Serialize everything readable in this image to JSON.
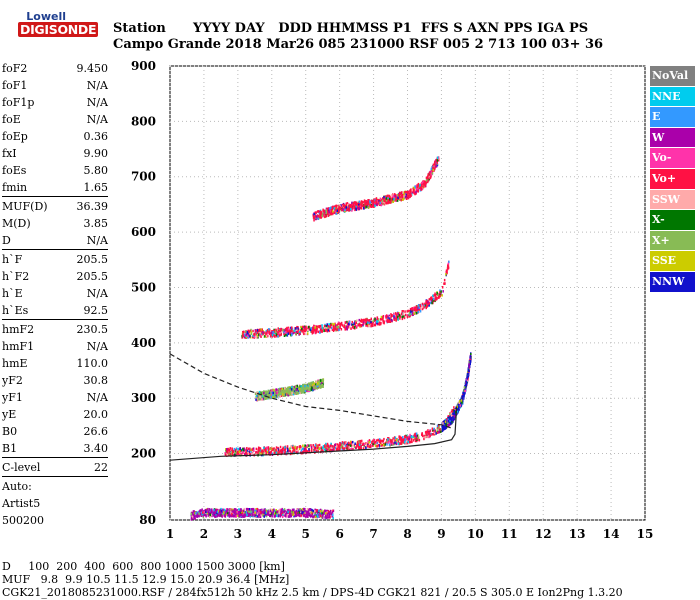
{
  "logo": {
    "line1": "Lowell",
    "line2": "DIGISONDE"
  },
  "header": {
    "line1": "Station      YYYY DAY   DDD HHMMSS P1  FFS S AXN PPS IGA PS",
    "line2": "Campo Grande 2018 Mar26 085 231000 RSF 005 2 713 100 03+ 36"
  },
  "params": [
    {
      "k": "foF2",
      "v": "9.450"
    },
    {
      "k": "foF1",
      "v": "N/A"
    },
    {
      "k": "foF1p",
      "v": "N/A"
    },
    {
      "k": "foE",
      "v": "N/A"
    },
    {
      "k": "foEp",
      "v": "0.36"
    },
    {
      "k": "fxI",
      "v": "9.90"
    },
    {
      "k": "foEs",
      "v": "5.80"
    },
    {
      "k": "fmin",
      "v": "1.65"
    },
    {
      "sep": true
    },
    {
      "k": "MUF(D)",
      "v": "36.39"
    },
    {
      "k": "M(D)",
      "v": "3.85"
    },
    {
      "k": "D",
      "v": "N/A"
    },
    {
      "sep": true
    },
    {
      "k": "h`F",
      "v": "205.5"
    },
    {
      "k": "h`F2",
      "v": "205.5"
    },
    {
      "k": "h`E",
      "v": "N/A"
    },
    {
      "k": "h`Es",
      "v": "92.5"
    },
    {
      "sep": true
    },
    {
      "k": "hmF2",
      "v": "230.5"
    },
    {
      "k": "hmF1",
      "v": "N/A"
    },
    {
      "k": "hmE",
      "v": "110.0"
    },
    {
      "k": "yF2",
      "v": "30.8"
    },
    {
      "k": "yF1",
      "v": "N/A"
    },
    {
      "k": "yE",
      "v": "20.0"
    },
    {
      "k": "B0",
      "v": "26.6"
    },
    {
      "k": "B1",
      "v": "3.40"
    },
    {
      "sep": true
    },
    {
      "k": "C-level",
      "v": "22"
    },
    {
      "sep": true
    },
    {
      "text": "Auto:"
    },
    {
      "text": "Artist5"
    },
    {
      "text": "500200"
    }
  ],
  "legend": [
    {
      "label": "NoVal",
      "color": "#808080"
    },
    {
      "label": "NNE",
      "color": "#00ccee"
    },
    {
      "label": "E",
      "color": "#3399ff"
    },
    {
      "label": "W",
      "color": "#aa00aa"
    },
    {
      "label": "Vo-",
      "color": "#ff33aa"
    },
    {
      "label": "Vo+",
      "color": "#ff1144"
    },
    {
      "label": "SSW",
      "color": "#ffaaaa"
    },
    {
      "label": "X-",
      "color": "#007700"
    },
    {
      "label": "X+",
      "color": "#88bb55"
    },
    {
      "label": "SSE",
      "color": "#cccc00"
    },
    {
      "label": "NNW",
      "color": "#1111cc"
    }
  ],
  "bottom": {
    "line1": "D     100  200  400  600  800 1000 1500 3000 [km]",
    "line2": "MUF   9.8  9.9 10.5 11.5 12.9 15.0 20.9 36.4 [MHz]",
    "line3": "CGK21_2018085231000.RSF / 284fx512h 50 kHz 2.5 km / DPS-4D CGK21 821 / 20.5 S 305.0 E Ion2Png 1.3.20"
  },
  "chart_data": {
    "type": "scatter",
    "xlim": [
      1,
      15
    ],
    "ylim": [
      80,
      900
    ],
    "xticks": [
      1,
      2,
      3,
      4,
      5,
      6,
      7,
      8,
      9,
      10,
      11,
      12,
      13,
      14,
      15
    ],
    "yticks": [
      80,
      200,
      300,
      400,
      500,
      600,
      700,
      800,
      900
    ],
    "series": [
      {
        "kind": "traces",
        "color": "#ff1144",
        "x": [
          2.6,
          3.0,
          4.0,
          5.0,
          6.0,
          7.0,
          8.0,
          8.5,
          9.0,
          9.2,
          9.4
        ],
        "y": [
          205,
          205,
          207,
          210,
          215,
          220,
          228,
          235,
          250,
          265,
          285
        ]
      },
      {
        "kind": "traces",
        "color": "#ff1144",
        "x": [
          3.1,
          4.0,
          5.0,
          6.0,
          7.0,
          8.0,
          8.5,
          9.0,
          9.2
        ],
        "y": [
          418,
          420,
          425,
          432,
          440,
          455,
          470,
          495,
          545
        ]
      },
      {
        "kind": "traces",
        "color": "#ff1144",
        "x": [
          5.2,
          6.0,
          7.0,
          8.0,
          8.5,
          8.9
        ],
        "y": [
          630,
          645,
          655,
          670,
          690,
          735
        ]
      },
      {
        "kind": "traces",
        "color": "#1111cc",
        "x": [
          9.0,
          9.3,
          9.6,
          9.75,
          9.85
        ],
        "y": [
          250,
          265,
          300,
          340,
          380
        ]
      },
      {
        "kind": "traces",
        "color": "#88bb55",
        "x": [
          3.5,
          4.0,
          4.5,
          5.0,
          5.5
        ],
        "y": [
          305,
          310,
          315,
          320,
          330
        ]
      },
      {
        "kind": "traces",
        "color": "#aa00aa",
        "x": [
          1.6,
          2.0,
          3.0,
          4.0,
          5.0,
          5.8
        ],
        "y": [
          90,
          95,
          95,
          95,
          95,
          92
        ]
      }
    ],
    "profile_solid": {
      "x": [
        1.0,
        2.5,
        4.0,
        5.5,
        7.0,
        8.0,
        8.8,
        9.3,
        9.4,
        9.45
      ],
      "y": [
        188,
        195,
        198,
        203,
        208,
        213,
        218,
        225,
        235,
        285
      ]
    },
    "profile_dashed": {
      "x": [
        1.0,
        2.0,
        3.0,
        4.0,
        5.0,
        6.0,
        7.0,
        8.0,
        9.0,
        9.35
      ],
      "y": [
        380,
        345,
        320,
        300,
        285,
        278,
        268,
        258,
        252,
        245
      ]
    }
  }
}
